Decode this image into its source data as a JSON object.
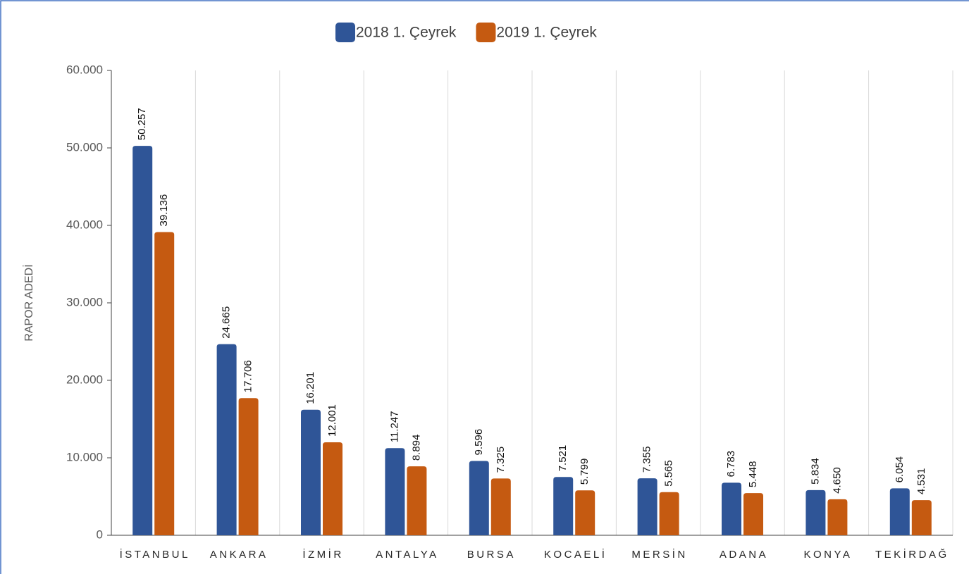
{
  "chart_data": {
    "type": "bar",
    "y_label": "RAPOR ADEDİ",
    "categories": [
      "İSTANBUL",
      "ANKARA",
      "İZMİR",
      "ANTALYA",
      "BURSA",
      "KOCAELİ",
      "MERSİN",
      "ADANA",
      "KONYA",
      "TEKİRDAĞ"
    ],
    "series": [
      {
        "name": "2018 1. Çeyrek",
        "color": "#2f5597",
        "values": [
          50257,
          24665,
          16201,
          11247,
          9596,
          7521,
          7355,
          6783,
          5834,
          6054
        ],
        "value_labels": [
          "50.257",
          "24.665",
          "16.201",
          "11.247",
          "9.596",
          "7.521",
          "7.355",
          "6.783",
          "5.834",
          "6.054"
        ]
      },
      {
        "name": "2019 1. Çeyrek",
        "color": "#c55a11",
        "values": [
          39136,
          17706,
          12001,
          8894,
          7325,
          5799,
          5565,
          5448,
          4650,
          4531
        ],
        "value_labels": [
          "39.136",
          "17.706",
          "12.001",
          "8.894",
          "7.325",
          "5.799",
          "5.565",
          "5.448",
          "4.650",
          "4.531"
        ]
      }
    ],
    "ylim": [
      0,
      60000
    ],
    "yticks": [
      0,
      {
        "value": 10000,
        "label": "10.000"
      },
      {
        "value": 20000,
        "label": "20.000"
      },
      {
        "value": 30000,
        "label": "30.000"
      },
      {
        "value": 40000,
        "label": "40.000"
      },
      {
        "value": 50000,
        "label": "50.000"
      },
      {
        "value": 60000,
        "label": "60.000"
      }
    ],
    "legend": "top"
  }
}
